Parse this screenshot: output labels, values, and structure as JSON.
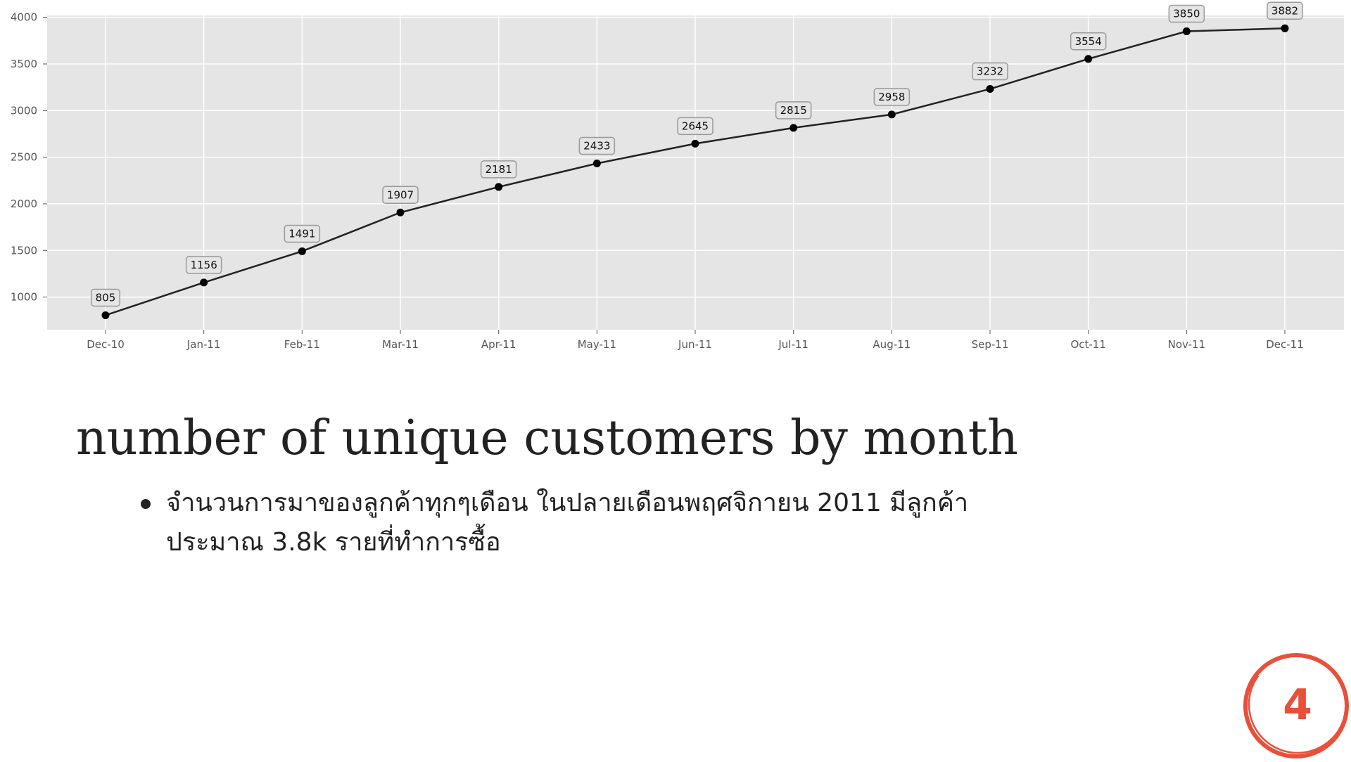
{
  "chart_data": {
    "type": "line",
    "title": "",
    "xlabel": "",
    "ylabel": "",
    "categories": [
      "Dec-10",
      "Jan-11",
      "Feb-11",
      "Mar-11",
      "Apr-11",
      "May-11",
      "Jun-11",
      "Jul-11",
      "Aug-11",
      "Sep-11",
      "Oct-11",
      "Nov-11",
      "Dec-11"
    ],
    "values": [
      805,
      1156,
      1491,
      1907,
      2181,
      2433,
      2645,
      2815,
      2958,
      3232,
      3554,
      3850,
      3882
    ],
    "ylim": [
      650,
      4020
    ],
    "yticks": [
      1000,
      1500,
      2000,
      2500,
      3000,
      3500,
      4000
    ],
    "grid": true,
    "data_labels": true,
    "colors": {
      "plot_background": "#e5e5e5",
      "grid": "#ffffff",
      "line": "#222222",
      "marker": "#000000",
      "label_box": "#e5e5e5",
      "label_border": "#9a9a9a"
    }
  },
  "slide": {
    "title": "number of unique customers by month",
    "bullets": [
      "จำนวนการมาของลูกค้าทุกๆเดือน ในปลายเดือนพฤศจิกายน 2011 มีลูกค้าประมาณ 3.8k รายที่ทำการซื้อ"
    ],
    "page_number": "4",
    "badge_color": "#e8503a"
  }
}
